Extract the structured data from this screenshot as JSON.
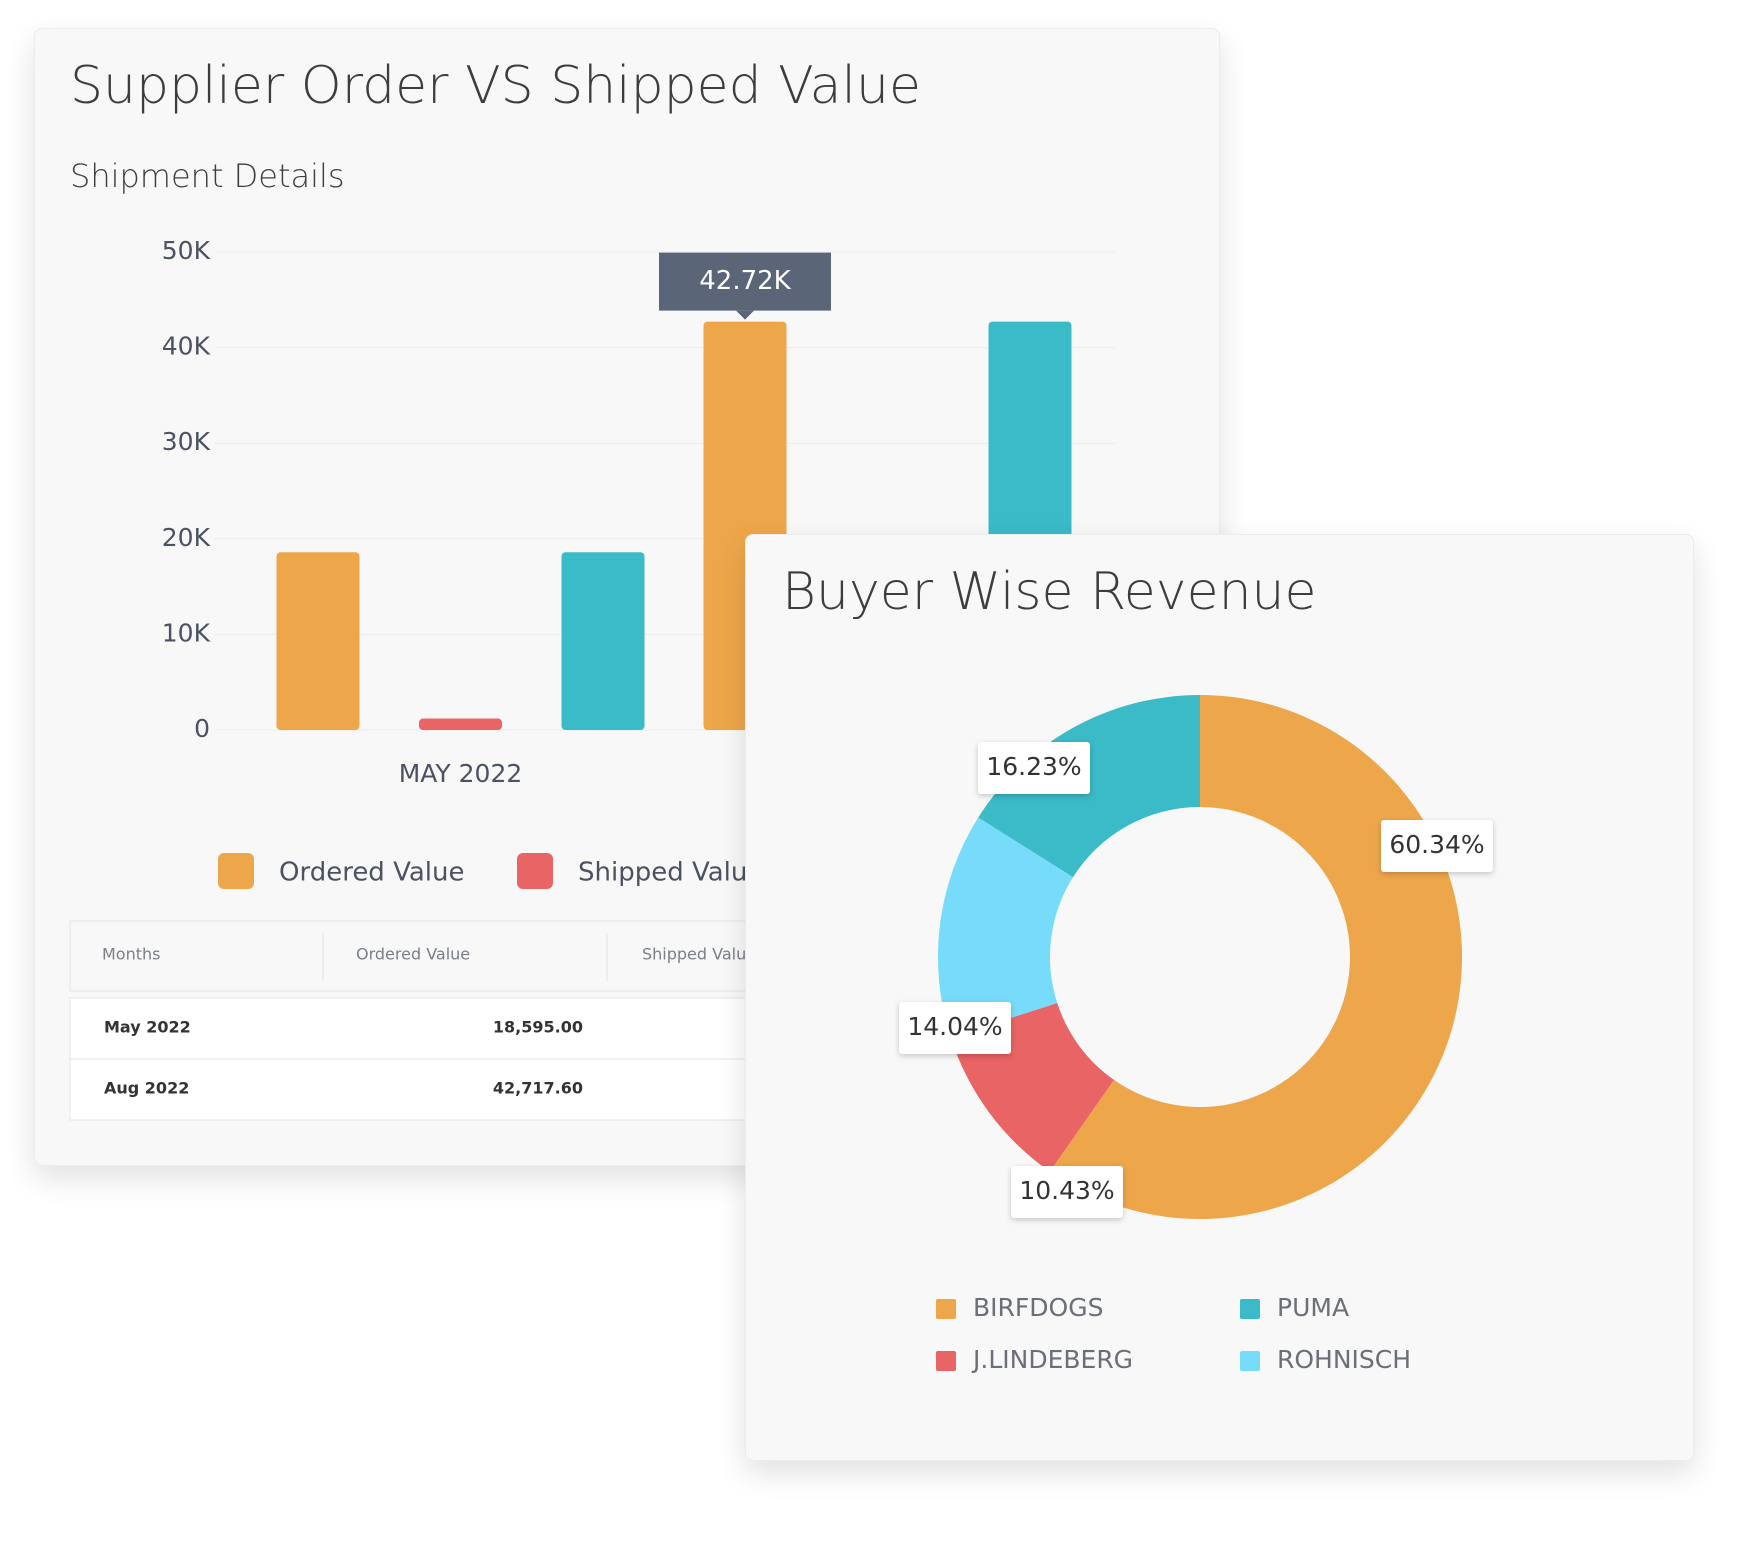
{
  "chart_data": [
    {
      "type": "bar",
      "title": "Supplier Order VS Shipped Value",
      "subtitle": "Shipment Details",
      "categories": [
        "MAY 2022",
        null
      ],
      "series": [
        {
          "name": "Ordered Value",
          "color": "#eea64b",
          "values": [
            18595,
            42717.6
          ],
          "value_labels": [
            null,
            "42.72K"
          ]
        },
        {
          "name": "Shipped Value",
          "color": "#e96464",
          "values": [
            1200,
            null
          ]
        },
        {
          "color": "#3bbac8",
          "values": [
            18595,
            42717.6
          ]
        }
      ],
      "ylim": [
        0,
        50000
      ],
      "yticks": [
        0,
        {
          "value": 10000,
          "label": "10K"
        },
        {
          "value": 20000,
          "label": "20K"
        },
        {
          "value": 30000,
          "label": "30K"
        },
        {
          "value": 40000,
          "label": "40K"
        },
        {
          "value": 50000,
          "label": "50K"
        }
      ],
      "grid": true
    },
    {
      "type": "donut",
      "title": "Buyer Wise Revenue",
      "categories": [
        "BIRFDOGS",
        "J.LINDEBERG",
        "ROHNISCH",
        "PUMA"
      ],
      "values": [
        60.34,
        10.43,
        14.04,
        16.23
      ],
      "value_labels": [
        "60.34%",
        "10.43%",
        "14.04%",
        "16.23%"
      ],
      "colors": [
        "#eea64b",
        "#e96464",
        "#77dcf9",
        "#3bbac8"
      ]
    }
  ],
  "table": {
    "columns": [
      "Months",
      "Ordered Value",
      "Shipped Value"
    ],
    "rows": [
      [
        "May 2022",
        "18,595.00"
      ],
      [
        "Aug 2022",
        "42,717.60"
      ]
    ]
  }
}
